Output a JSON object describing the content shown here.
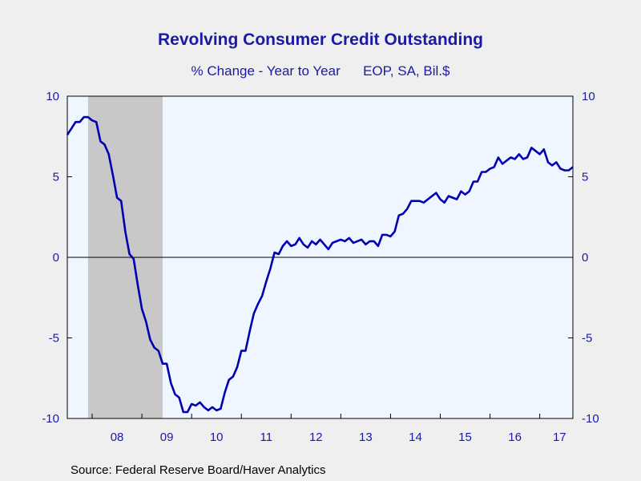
{
  "chart_data": {
    "type": "line",
    "title": "Revolving Consumer Credit Outstanding",
    "subtitle_left": "% Change - Year to Year",
    "subtitle_right": "EOP, SA, Bil.$",
    "ylim": [
      -10,
      10
    ],
    "yticks": [
      10,
      5,
      0,
      -5,
      -10
    ],
    "xlim": [
      "2007-07",
      "2017-09"
    ],
    "x_tick_labels": [
      "08",
      "09",
      "10",
      "11",
      "12",
      "13",
      "14",
      "15",
      "16",
      "17"
    ],
    "recession_shading": {
      "start": "2007-12",
      "end": "2009-06"
    },
    "grid": false,
    "zero_line": true,
    "series": [
      {
        "color": "#0000b3",
        "x": [
          "2007-07",
          "2007-08",
          "2007-09",
          "2007-10",
          "2007-11",
          "2007-12",
          "2008-01",
          "2008-02",
          "2008-03",
          "2008-04",
          "2008-05",
          "2008-06",
          "2008-07",
          "2008-08",
          "2008-09",
          "2008-10",
          "2008-11",
          "2008-12",
          "2009-01",
          "2009-02",
          "2009-03",
          "2009-04",
          "2009-05",
          "2009-06",
          "2009-07",
          "2009-08",
          "2009-09",
          "2009-10",
          "2009-11",
          "2009-12",
          "2010-01",
          "2010-02",
          "2010-03",
          "2010-04",
          "2010-05",
          "2010-06",
          "2010-07",
          "2010-08",
          "2010-09",
          "2010-10",
          "2010-11",
          "2010-12",
          "2011-01",
          "2011-02",
          "2011-03",
          "2011-04",
          "2011-05",
          "2011-06",
          "2011-07",
          "2011-08",
          "2011-09",
          "2011-10",
          "2011-11",
          "2011-12",
          "2012-01",
          "2012-02",
          "2012-03",
          "2012-04",
          "2012-05",
          "2012-06",
          "2012-07",
          "2012-08",
          "2012-09",
          "2012-10",
          "2012-11",
          "2012-12",
          "2013-01",
          "2013-02",
          "2013-03",
          "2013-04",
          "2013-05",
          "2013-06",
          "2013-07",
          "2013-08",
          "2013-09",
          "2013-10",
          "2013-11",
          "2013-12",
          "2014-01",
          "2014-02",
          "2014-03",
          "2014-04",
          "2014-05",
          "2014-06",
          "2014-07",
          "2014-08",
          "2014-09",
          "2014-10",
          "2014-11",
          "2014-12",
          "2015-01",
          "2015-02",
          "2015-03",
          "2015-04",
          "2015-05",
          "2015-06",
          "2015-07",
          "2015-08",
          "2015-09",
          "2015-10",
          "2015-11",
          "2015-12",
          "2016-01",
          "2016-02",
          "2016-03",
          "2016-04",
          "2016-05",
          "2016-06",
          "2016-07",
          "2016-08",
          "2016-09",
          "2016-10",
          "2016-11",
          "2016-12",
          "2017-01",
          "2017-02",
          "2017-03",
          "2017-04",
          "2017-05",
          "2017-06",
          "2017-07",
          "2017-08",
          "2017-09"
        ],
        "values": [
          7.6,
          8.0,
          8.4,
          8.4,
          8.7,
          8.7,
          8.5,
          8.4,
          7.2,
          7.0,
          6.4,
          5.1,
          3.7,
          3.5,
          1.6,
          0.2,
          -0.1,
          -1.7,
          -3.2,
          -4.0,
          -5.1,
          -5.6,
          -5.8,
          -6.6,
          -6.6,
          -7.8,
          -8.5,
          -8.7,
          -9.6,
          -9.6,
          -9.1,
          -9.2,
          -9.0,
          -9.3,
          -9.5,
          -9.3,
          -9.5,
          -9.4,
          -8.4,
          -7.6,
          -7.4,
          -6.8,
          -5.8,
          -5.8,
          -4.6,
          -3.5,
          -2.9,
          -2.4,
          -1.5,
          -0.7,
          0.3,
          0.2,
          0.7,
          1.0,
          0.7,
          0.8,
          1.2,
          0.8,
          0.6,
          1.0,
          0.8,
          1.1,
          0.8,
          0.5,
          0.9,
          1.0,
          1.1,
          1.0,
          1.2,
          0.9,
          1.0,
          1.1,
          0.8,
          1.0,
          1.0,
          0.7,
          1.4,
          1.4,
          1.3,
          1.6,
          2.6,
          2.7,
          3.0,
          3.5,
          3.5,
          3.5,
          3.4,
          3.6,
          3.8,
          4.0,
          3.6,
          3.4,
          3.8,
          3.7,
          3.6,
          4.1,
          3.9,
          4.1,
          4.7,
          4.7,
          5.3,
          5.3,
          5.5,
          5.6,
          6.2,
          5.8,
          6.0,
          6.2,
          6.1,
          6.4,
          6.1,
          6.2,
          6.8,
          6.6,
          6.4,
          6.7,
          5.9,
          5.7,
          5.9,
          5.5,
          5.4,
          5.4,
          5.6
        ]
      }
    ]
  },
  "source": "Source:  Federal Reserve Board/Haver Analytics",
  "colors": {
    "title": "#1a1aa6",
    "line": "#0000b3",
    "plot_bg": "#f0f6ff",
    "recession": "#c8c8c8"
  }
}
